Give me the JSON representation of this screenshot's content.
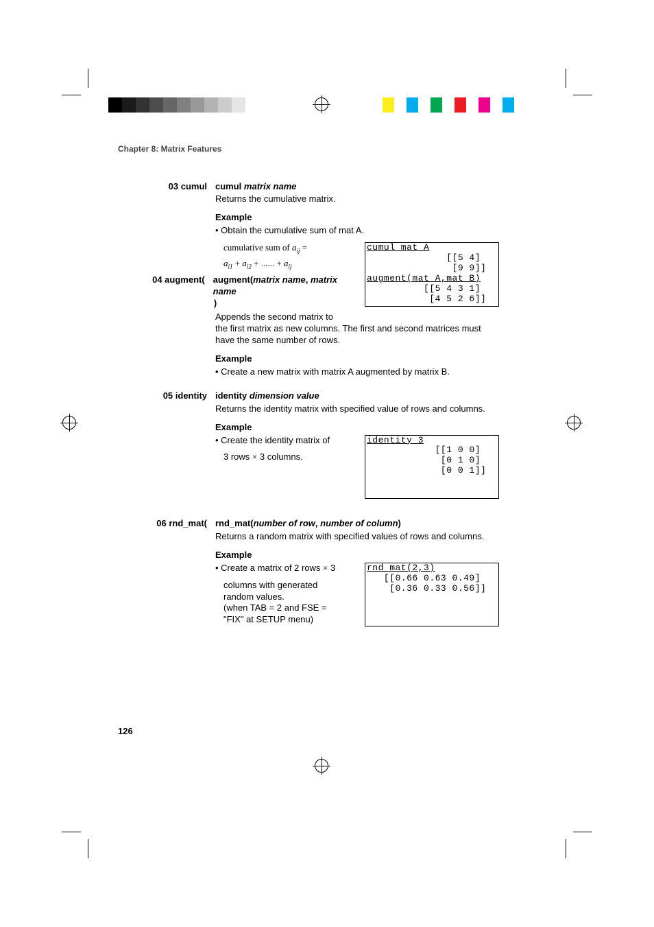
{
  "colorbars": {
    "gray_shades": [
      "#000000",
      "#1a1a1a",
      "#333333",
      "#4d4d4d",
      "#666666",
      "#808080",
      "#999999",
      "#b3b3b3",
      "#cccccc",
      "#e5e5e5",
      "#ffffff"
    ],
    "colors": [
      "#fcee1f",
      "#00aeef",
      "#00a651",
      "#ed1c24",
      "#ec008c",
      "#00adef"
    ]
  },
  "chapter_head": "Chapter 8: Matrix Features",
  "sections": [
    {
      "label": "03 cumul",
      "syntax_pre": "cumul ",
      "syntax_it": "matrix name",
      "syntax_post": "",
      "desc": "Returns the cumulative matrix.",
      "example_head": "Example",
      "bullet": "Obtain the cumulative sum of mat A.",
      "formula_html": "cumulative sum of <span class='i'>a<span class='sub'>ij</span></span> =",
      "formula2_html": "<span class='i'>a<span class='sub'>i1</span></span> + <span class='i'>a<span class='sub'>i2</span></span> + ...... + <span class='i'>a<span class='sub'>ij</span></span>",
      "screen_lines": [
        {
          "text": "cumul mat A",
          "underline": true
        },
        {
          "text": "              [[5 4]",
          "underline": false
        },
        {
          "text": "               [9 9]]",
          "underline": false
        }
      ]
    },
    {
      "label": "04 augment(",
      "syntax_pre": "augment(",
      "syntax_it": "matrix name",
      "syntax_mid": ", ",
      "syntax_it2": "matrix name",
      "syntax_post": ")",
      "desc": "Appends the second matrix to the first matrix as new columns. The first and second matrices must have the same number of rows.",
      "example_head": "Example",
      "bullet": "Create a new matrix with matrix A augmented by matrix B.",
      "screen_lines": [
        {
          "text": "augment(mat A,mat B)",
          "underline": true
        },
        {
          "text": "          [[5 4 3 1]",
          "underline": false
        },
        {
          "text": "           [4 5 2 6]]",
          "underline": false
        }
      ]
    },
    {
      "label": "05 identity",
      "syntax_pre": "identity ",
      "syntax_it": "dimension value",
      "syntax_post": "",
      "desc": "Returns the identity matrix with specified value of rows and columns.",
      "example_head": "Example",
      "bullet": "Create the identity matrix of 3 rows × 3 columns.",
      "screen_lines": [
        {
          "text": "identity 3",
          "underline": true
        },
        {
          "text": "            [[1 0 0]",
          "underline": false
        },
        {
          "text": "             [0 1 0]",
          "underline": false
        },
        {
          "text": "             [0 0 1]]",
          "underline": false
        },
        {
          "text": "",
          "underline": false
        },
        {
          "text": "",
          "underline": false
        }
      ]
    },
    {
      "label": "06 rnd_mat(",
      "syntax_pre": "rnd_mat(",
      "syntax_it": "number of row",
      "syntax_mid": ", ",
      "syntax_it2": "number of column",
      "syntax_post": ")",
      "desc": "Returns a random matrix with specified values of rows and columns.",
      "example_head": "Example",
      "bullet": "Create a matrix of 2 rows × 3 columns with generated random values.",
      "bullet_cont": "(when TAB = 2 and FSE = \"FIX\" at SETUP menu)",
      "screen_lines": [
        {
          "text": "rnd_mat(2,3)",
          "underline": true
        },
        {
          "text": "   [[0.66 0.63 0.49]",
          "underline": false
        },
        {
          "text": "    [0.36 0.33 0.56]]",
          "underline": false
        },
        {
          "text": "",
          "underline": false
        },
        {
          "text": "",
          "underline": false
        },
        {
          "text": "",
          "underline": false
        }
      ]
    }
  ],
  "page_number": "126"
}
